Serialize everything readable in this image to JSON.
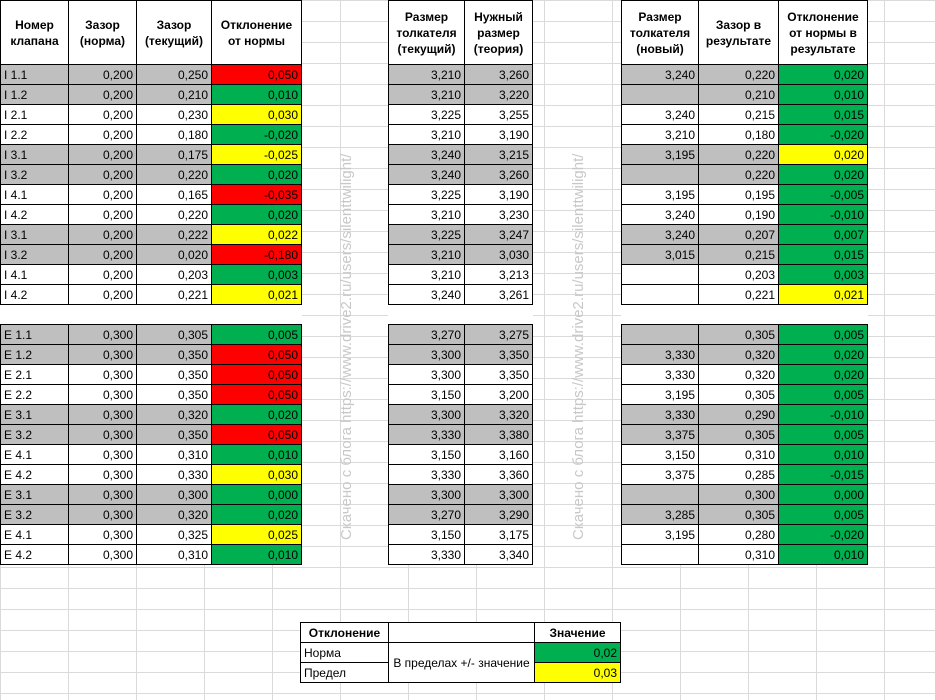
{
  "watermark": "Скачено с блога https://www.drive2.ru/users/silenttwilight/",
  "colors": {
    "red": "#ff0000",
    "green": "#00b050",
    "yellow": "#ffff00",
    "gray": "#bfbfbf"
  },
  "headers": {
    "valve": "Номер клапана",
    "gap_norm": "Зазор (норма)",
    "gap_current": "Зазор (текущий)",
    "deviation": "Отклонение от нормы",
    "pusher_current": "Размер толкателя (текущий)",
    "needed_size": "Нужный размер (теория)",
    "pusher_new": "Размер толкателя (новый)",
    "result_gap": "Зазор в результате",
    "result_dev": "Отклонение от нормы в результате"
  },
  "rows": [
    {
      "v": "I 1.1",
      "n": "0,200",
      "c": "0,250",
      "d": "0,050",
      "dc": "red",
      "pc": "3,210",
      "t": "3,260",
      "pn": "3,240",
      "rg": "0,220",
      "rd": "0,020",
      "rdc": "green",
      "shade": true
    },
    {
      "v": "I 1.2",
      "n": "0,200",
      "c": "0,210",
      "d": "0,010",
      "dc": "green",
      "pc": "3,210",
      "t": "3,220",
      "pn": "",
      "rg": "0,210",
      "rd": "0,010",
      "rdc": "green",
      "shade": true
    },
    {
      "v": "I 2.1",
      "n": "0,200",
      "c": "0,230",
      "d": "0,030",
      "dc": "yellow",
      "pc": "3,225",
      "t": "3,255",
      "pn": "3,240",
      "rg": "0,215",
      "rd": "0,015",
      "rdc": "green",
      "shade": false
    },
    {
      "v": "I 2.2",
      "n": "0,200",
      "c": "0,180",
      "d": "-0,020",
      "dc": "green",
      "pc": "3,210",
      "t": "3,190",
      "pn": "3,210",
      "rg": "0,180",
      "rd": "-0,020",
      "rdc": "green",
      "shade": false
    },
    {
      "v": "I 3.1",
      "n": "0,200",
      "c": "0,175",
      "d": "-0,025",
      "dc": "yellow",
      "pc": "3,240",
      "t": "3,215",
      "pn": "3,195",
      "rg": "0,220",
      "rd": "0,020",
      "rdc": "yellow",
      "shade": true
    },
    {
      "v": "I 3.2",
      "n": "0,200",
      "c": "0,220",
      "d": "0,020",
      "dc": "green",
      "pc": "3,240",
      "t": "3,260",
      "pn": "",
      "rg": "0,220",
      "rd": "0,020",
      "rdc": "green",
      "shade": true
    },
    {
      "v": "I 4.1",
      "n": "0,200",
      "c": "0,165",
      "d": "-0,035",
      "dc": "red",
      "pc": "3,225",
      "t": "3,190",
      "pn": "3,195",
      "rg": "0,195",
      "rd": "-0,005",
      "rdc": "green",
      "shade": false
    },
    {
      "v": "I 4.2",
      "n": "0,200",
      "c": "0,220",
      "d": "0,020",
      "dc": "green",
      "pc": "3,210",
      "t": "3,230",
      "pn": "3,240",
      "rg": "0,190",
      "rd": "-0,010",
      "rdc": "green",
      "shade": false
    },
    {
      "v": "I 3.1",
      "n": "0,200",
      "c": "0,222",
      "d": "0,022",
      "dc": "yellow",
      "pc": "3,225",
      "t": "3,247",
      "pn": "3,240",
      "rg": "0,207",
      "rd": "0,007",
      "rdc": "green",
      "shade": true
    },
    {
      "v": "I 3.2",
      "n": "0,200",
      "c": "0,020",
      "d": "-0,180",
      "dc": "red",
      "pc": "3,210",
      "t": "3,030",
      "pn": "3,015",
      "rg": "0,215",
      "rd": "0,015",
      "rdc": "green",
      "shade": true
    },
    {
      "v": "I 4.1",
      "n": "0,200",
      "c": "0,203",
      "d": "0,003",
      "dc": "green",
      "pc": "3,210",
      "t": "3,213",
      "pn": "",
      "rg": "0,203",
      "rd": "0,003",
      "rdc": "green",
      "shade": false
    },
    {
      "v": "I 4.2",
      "n": "0,200",
      "c": "0,221",
      "d": "0,021",
      "dc": "yellow",
      "pc": "3,240",
      "t": "3,261",
      "pn": "",
      "rg": "0,221",
      "rd": "0,021",
      "rdc": "yellow",
      "shade": false
    },
    {
      "gap": true
    },
    {
      "v": "E 1.1",
      "n": "0,300",
      "c": "0,305",
      "d": "0,005",
      "dc": "green",
      "pc": "3,270",
      "t": "3,275",
      "pn": "",
      "rg": "0,305",
      "rd": "0,005",
      "rdc": "green",
      "shade": true
    },
    {
      "v": "E 1.2",
      "n": "0,300",
      "c": "0,350",
      "d": "0,050",
      "dc": "red",
      "pc": "3,300",
      "t": "3,350",
      "pn": "3,330",
      "rg": "0,320",
      "rd": "0,020",
      "rdc": "green",
      "shade": true
    },
    {
      "v": "E 2.1",
      "n": "0,300",
      "c": "0,350",
      "d": "0,050",
      "dc": "red",
      "pc": "3,300",
      "t": "3,350",
      "pn": "3,330",
      "rg": "0,320",
      "rd": "0,020",
      "rdc": "green",
      "shade": false
    },
    {
      "v": "E 2.2",
      "n": "0,300",
      "c": "0,350",
      "d": "0,050",
      "dc": "red",
      "pc": "3,150",
      "t": "3,200",
      "pn": "3,195",
      "rg": "0,305",
      "rd": "0,005",
      "rdc": "green",
      "shade": false
    },
    {
      "v": "E 3.1",
      "n": "0,300",
      "c": "0,320",
      "d": "0,020",
      "dc": "green",
      "pc": "3,300",
      "t": "3,320",
      "pn": "3,330",
      "rg": "0,290",
      "rd": "-0,010",
      "rdc": "green",
      "shade": true
    },
    {
      "v": "E 3.2",
      "n": "0,300",
      "c": "0,350",
      "d": "0,050",
      "dc": "red",
      "pc": "3,330",
      "t": "3,380",
      "pn": "3,375",
      "rg": "0,305",
      "rd": "0,005",
      "rdc": "green",
      "shade": true
    },
    {
      "v": "E 4.1",
      "n": "0,300",
      "c": "0,310",
      "d": "0,010",
      "dc": "green",
      "pc": "3,150",
      "t": "3,160",
      "pn": "3,150",
      "rg": "0,310",
      "rd": "0,010",
      "rdc": "green",
      "shade": false
    },
    {
      "v": "E 4.2",
      "n": "0,300",
      "c": "0,330",
      "d": "0,030",
      "dc": "yellow",
      "pc": "3,330",
      "t": "3,360",
      "pn": "3,375",
      "rg": "0,285",
      "rd": "-0,015",
      "rdc": "green",
      "shade": false
    },
    {
      "v": "E 3.1",
      "n": "0,300",
      "c": "0,300",
      "d": "0,000",
      "dc": "green",
      "pc": "3,300",
      "t": "3,300",
      "pn": "",
      "rg": "0,300",
      "rd": "0,000",
      "rdc": "green",
      "shade": true
    },
    {
      "v": "E 3.2",
      "n": "0,300",
      "c": "0,320",
      "d": "0,020",
      "dc": "green",
      "pc": "3,270",
      "t": "3,290",
      "pn": "3,285",
      "rg": "0,305",
      "rd": "0,005",
      "rdc": "green",
      "shade": true
    },
    {
      "v": "E 4.1",
      "n": "0,300",
      "c": "0,325",
      "d": "0,025",
      "dc": "yellow",
      "pc": "3,150",
      "t": "3,175",
      "pn": "3,195",
      "rg": "0,280",
      "rd": "-0,020",
      "rdc": "green",
      "shade": false
    },
    {
      "v": "E 4.2",
      "n": "0,300",
      "c": "0,310",
      "d": "0,010",
      "dc": "green",
      "pc": "3,330",
      "t": "3,340",
      "pn": "",
      "rg": "0,310",
      "rd": "0,010",
      "rdc": "green",
      "shade": false
    }
  ],
  "legend": {
    "h_dev": "Отклонение",
    "h_val": "Значение",
    "norm_label": "Норма",
    "limit_label": "Предел",
    "desc": "В пределах +/- значение",
    "norm_value": "0,02",
    "limit_value": "0,03"
  }
}
